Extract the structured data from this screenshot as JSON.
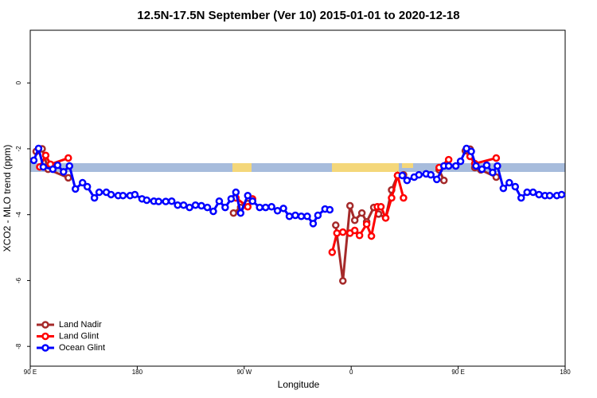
{
  "chart_data": {
    "type": "line",
    "title": "12.5N-17.5N September (Ver 10)   2015-01-01 to 2020-12-18",
    "x_label": "Longitude",
    "y_label": "XCO2 - MLO trend (ppm)",
    "xlim": [
      90,
      540
    ],
    "xticks": [
      {
        "value": 90,
        "label": "90 E"
      },
      180,
      {
        "value": 270,
        "label": "90 W"
      },
      {
        "value": 360,
        "label": "0"
      },
      {
        "value": 450,
        "label": "90 E"
      },
      {
        "value": 540,
        "label": "180"
      }
    ],
    "ylim": [
      -8.6,
      1.6
    ],
    "yticks": [
      0,
      -2,
      -4,
      -6,
      -8
    ],
    "legend": "bottom-left",
    "series": [
      {
        "name": "Land Nadir",
        "color": "#a52a2a",
        "x": [
          95,
          100,
          105,
          122,
          null,
          261,
          267,
          273,
          null,
          347,
          353,
          359,
          363,
          369,
          373,
          379,
          383,
          389,
          394,
          399,
          404,
          null,
          434,
          438,
          null,
          456,
          460,
          464,
          469,
          482
        ],
        "values": [
          -2.08,
          -2.0,
          -2.62,
          -2.88,
          null,
          -3.95,
          -3.78,
          -3.66,
          null,
          -4.32,
          -6.01,
          -3.73,
          -4.17,
          -3.95,
          -4.22,
          -3.78,
          -3.98,
          -4.1,
          -3.25,
          -2.81,
          -2.79,
          null,
          -2.64,
          -2.96,
          null,
          -2.06,
          -2.01,
          -2.57,
          -2.64,
          -2.86
        ]
      },
      {
        "name": "Land Glint",
        "color": "#ff0000",
        "x": [
          98,
          103,
          107,
          122,
          null,
          263,
          273,
          277,
          null,
          344,
          348,
          353,
          359,
          363,
          367,
          373,
          377,
          382,
          385,
          389,
          394,
          399,
          404,
          null,
          434,
          442,
          null,
          460,
          464,
          482
        ],
        "values": [
          -2.55,
          -2.2,
          -2.47,
          -2.28,
          null,
          -3.49,
          -3.76,
          -3.52,
          null,
          -5.14,
          -4.56,
          -4.53,
          -4.56,
          -4.48,
          -4.63,
          -4.29,
          -4.65,
          -3.76,
          -3.76,
          -4.1,
          -3.49,
          -2.81,
          -3.49,
          null,
          -2.57,
          -2.33,
          null,
          -2.23,
          -2.45,
          -2.28
        ]
      },
      {
        "name": "Ocean Glint",
        "color": "#0000ff",
        "x": [
          93,
          97,
          101,
          109,
          113,
          118,
          123,
          128,
          134,
          138,
          144,
          148,
          154,
          158,
          164,
          168,
          174,
          178,
          184,
          188,
          194,
          198,
          204,
          209,
          214,
          219,
          224,
          229,
          234,
          239,
          244,
          249,
          254,
          259,
          263,
          267,
          273,
          277,
          283,
          288,
          293,
          298,
          303,
          308,
          313,
          318,
          323,
          328,
          332,
          338,
          342,
          null,
          403,
          407,
          413,
          417,
          423,
          427,
          432,
          438,
          442,
          448,
          452,
          457,
          461,
          465,
          470,
          474,
          479,
          483,
          488,
          493,
          498,
          503,
          508,
          513,
          518,
          523,
          527,
          533,
          537
        ],
        "values": [
          -2.35,
          -1.99,
          -2.55,
          -2.62,
          -2.5,
          -2.7,
          -2.52,
          -3.22,
          -3.03,
          -3.15,
          -3.49,
          -3.32,
          -3.32,
          -3.39,
          -3.42,
          -3.42,
          -3.42,
          -3.39,
          -3.52,
          -3.56,
          -3.59,
          -3.6,
          -3.6,
          -3.59,
          -3.71,
          -3.71,
          -3.78,
          -3.71,
          -3.73,
          -3.78,
          -3.9,
          -3.59,
          -3.78,
          -3.52,
          -3.32,
          -3.95,
          -3.42,
          -3.59,
          -3.78,
          -3.78,
          -3.76,
          -3.88,
          -3.81,
          -4.05,
          -4.02,
          -4.05,
          -4.05,
          -4.27,
          -4.02,
          -3.83,
          -3.85,
          null,
          -2.81,
          -2.96,
          -2.86,
          -2.79,
          -2.76,
          -2.79,
          -2.93,
          -2.52,
          -2.52,
          -2.52,
          -2.38,
          -1.99,
          -2.08,
          -2.52,
          -2.62,
          -2.5,
          -2.72,
          -2.52,
          -3.2,
          -3.03,
          -3.15,
          -3.49,
          -3.32,
          -3.32,
          -3.39,
          -3.42,
          -3.42,
          -3.42,
          -3.39
        ]
      }
    ]
  }
}
